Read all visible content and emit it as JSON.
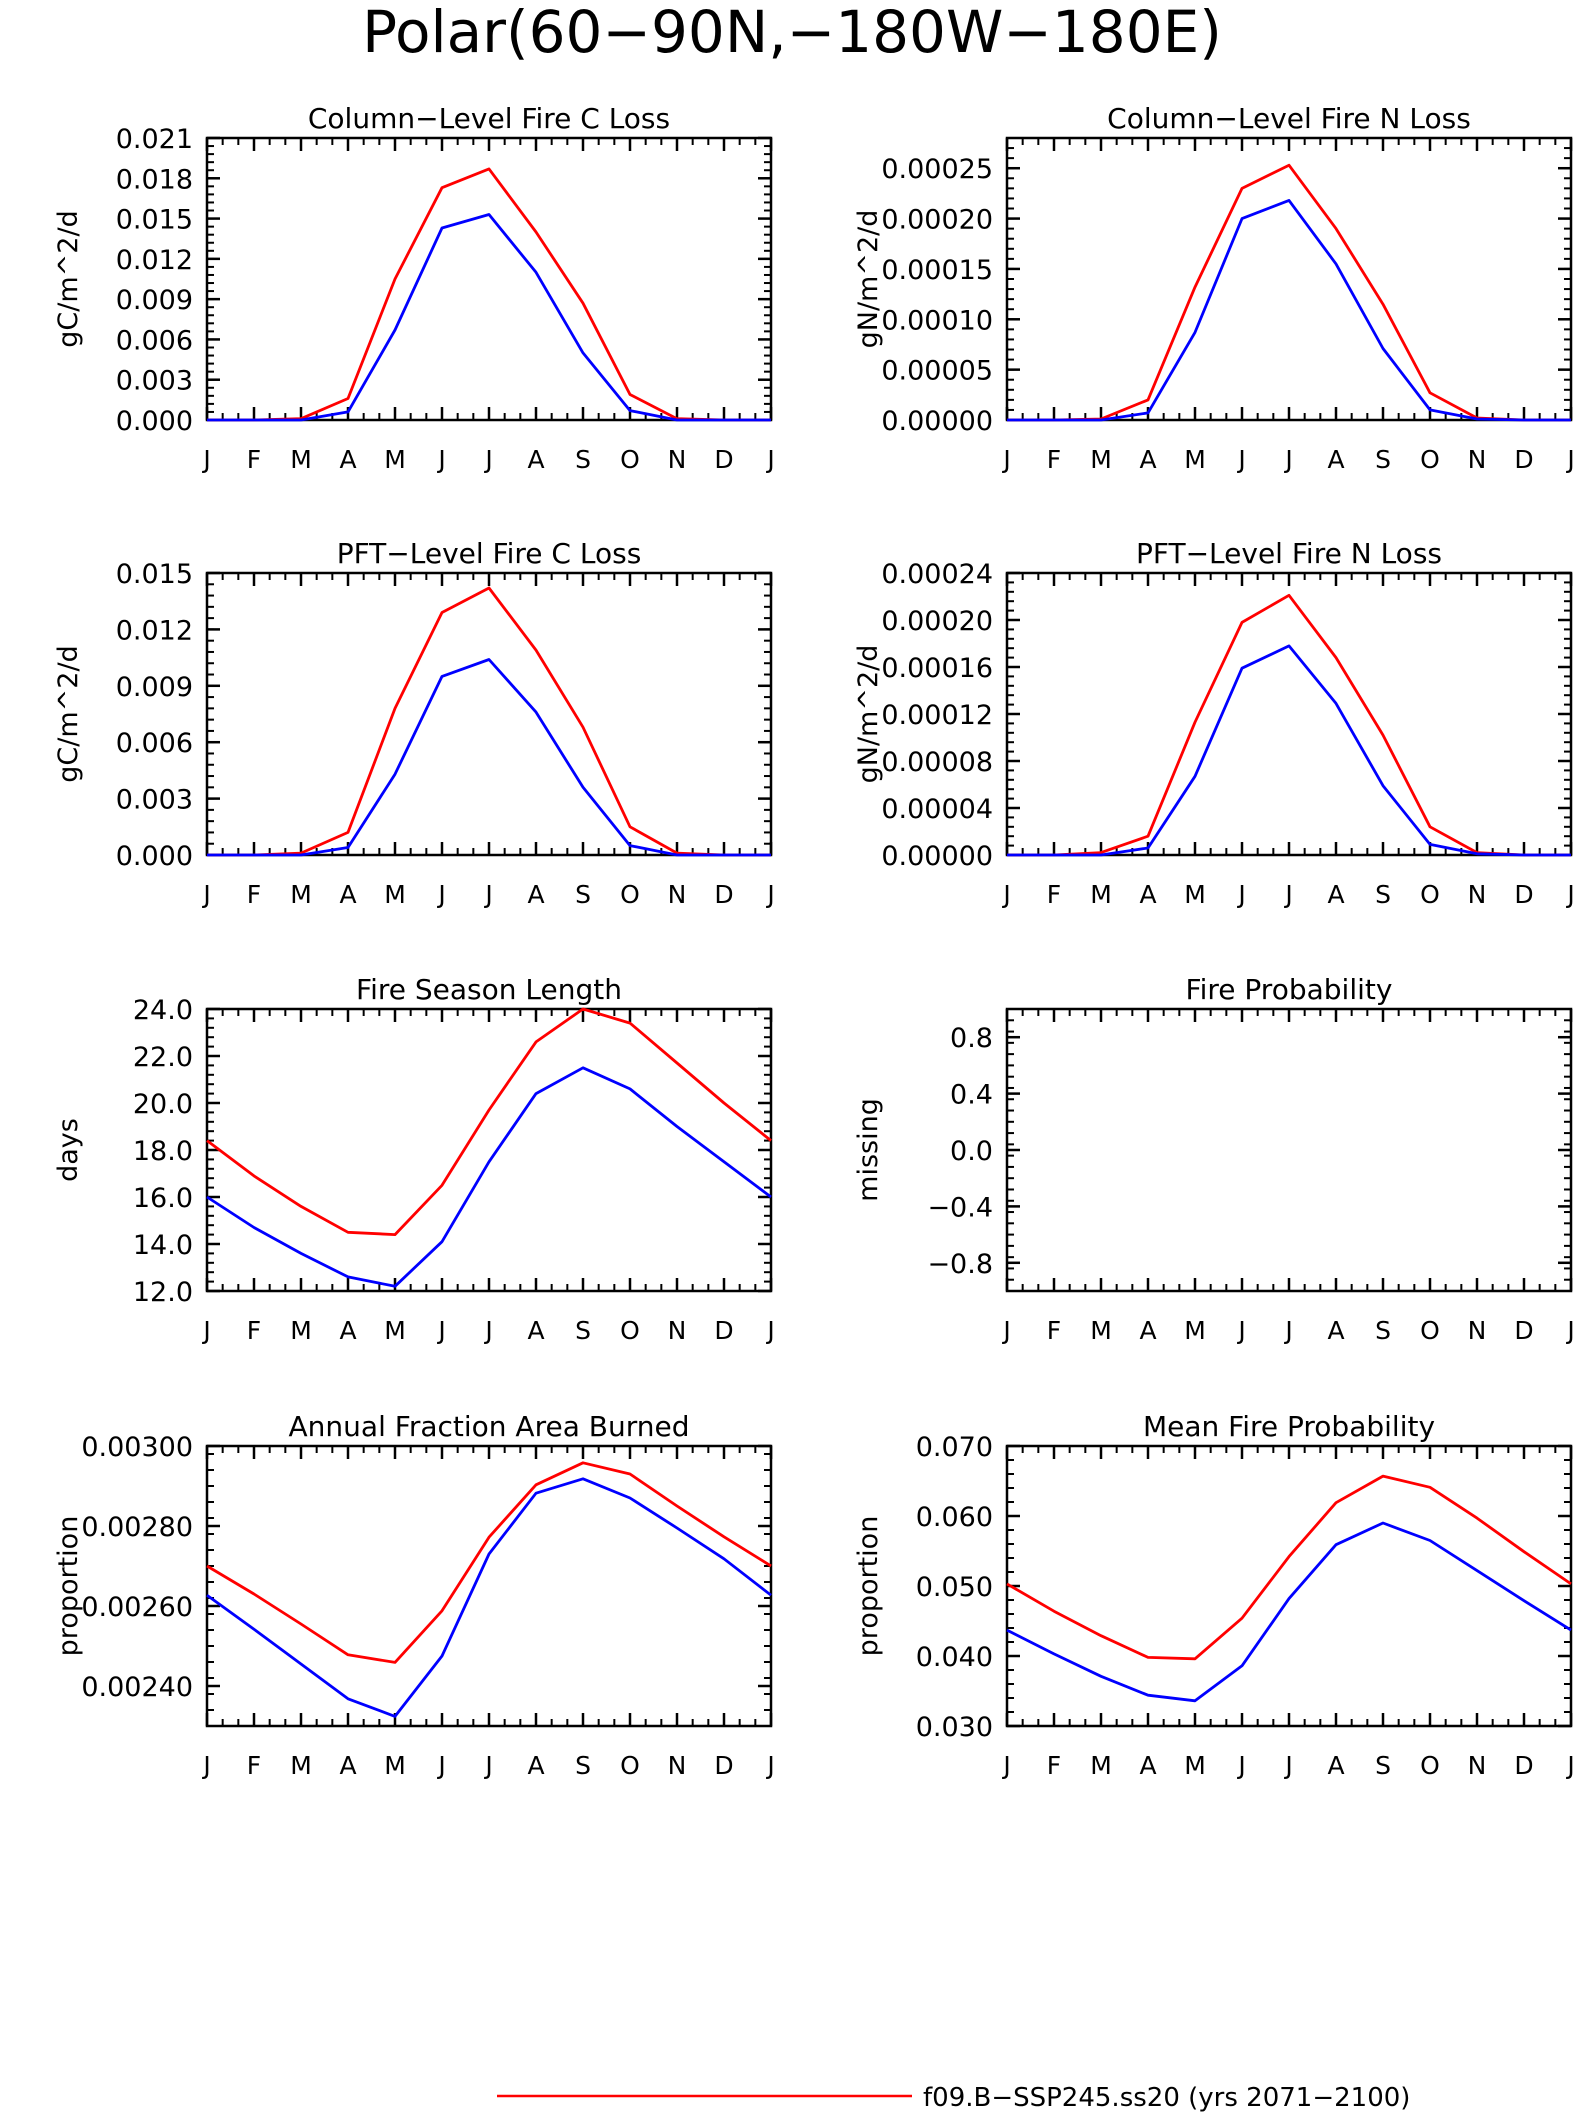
{
  "figure": {
    "title": "Polar(60−90N,−180W−180E)",
    "legend": [
      {
        "label": "f09.B−SSP245.ss20 (yrs 2071−2100)",
        "color": "#ff0000"
      }
    ]
  },
  "colors": {
    "series_red": "#ff0000",
    "series_blue": "#0000ff",
    "axis": "#000000"
  },
  "chart_data": [
    {
      "type": "line",
      "title": "Column−Level Fire C Loss",
      "ylabel": "gC/m^2/d",
      "x": [
        "J",
        "F",
        "M",
        "A",
        "M",
        "J",
        "J",
        "A",
        "S",
        "O",
        "N",
        "D",
        "J"
      ],
      "ylim": [
        0,
        0.021
      ],
      "yticks": [
        0,
        0.003,
        0.006,
        0.009,
        0.012,
        0.015,
        0.018,
        0.021
      ],
      "ytick_labels": [
        "0.000",
        "0.003",
        "0.006",
        "0.009",
        "0.012",
        "0.015",
        "0.018",
        "0.021"
      ],
      "series": [
        {
          "color": "#ff0000",
          "values": [
            0,
            0,
            0.0001,
            0.0016,
            0.0105,
            0.0173,
            0.0187,
            0.014,
            0.0087,
            0.0019,
            0.0001,
            0,
            0
          ]
        },
        {
          "color": "#0000ff",
          "values": [
            0,
            0,
            0,
            0.0006,
            0.0067,
            0.0143,
            0.0153,
            0.011,
            0.005,
            0.0007,
            0,
            0,
            0
          ]
        }
      ]
    },
    {
      "type": "line",
      "title": "Column−Level Fire N Loss",
      "ylabel": "gN/m^2/d",
      "x": [
        "J",
        "F",
        "M",
        "A",
        "M",
        "J",
        "J",
        "A",
        "S",
        "O",
        "N",
        "D",
        "J"
      ],
      "ylim": [
        0,
        0.00028
      ],
      "yticks": [
        0,
        5e-05,
        0.0001,
        0.00015,
        0.0002,
        0.00025
      ],
      "ytick_labels": [
        "0.00000",
        "0.00005",
        "0.00010",
        "0.00015",
        "0.00020",
        "0.00025"
      ],
      "series": [
        {
          "color": "#ff0000",
          "values": [
            0,
            0,
            1e-06,
            2e-05,
            0.000132,
            0.00023,
            0.000253,
            0.00019,
            0.000115,
            2.7e-05,
            2e-06,
            0,
            0
          ]
        },
        {
          "color": "#0000ff",
          "values": [
            0,
            0,
            0,
            7e-06,
            8.7e-05,
            0.0002,
            0.000218,
            0.000155,
            7.1e-05,
            1e-05,
            1e-06,
            0,
            0
          ]
        }
      ]
    },
    {
      "type": "line",
      "title": "PFT−Level Fire C Loss",
      "ylabel": "gC/m^2/d",
      "x": [
        "J",
        "F",
        "M",
        "A",
        "M",
        "J",
        "J",
        "A",
        "S",
        "O",
        "N",
        "D",
        "J"
      ],
      "ylim": [
        0,
        0.015
      ],
      "yticks": [
        0,
        0.003,
        0.006,
        0.009,
        0.012,
        0.015
      ],
      "ytick_labels": [
        "0.000",
        "0.003",
        "0.006",
        "0.009",
        "0.012",
        "0.015"
      ],
      "series": [
        {
          "color": "#ff0000",
          "values": [
            0,
            0,
            0.0001,
            0.0012,
            0.0078,
            0.0129,
            0.0142,
            0.0109,
            0.0068,
            0.0015,
            0.0001,
            0,
            0
          ]
        },
        {
          "color": "#0000ff",
          "values": [
            0,
            0,
            0,
            0.0004,
            0.0043,
            0.0095,
            0.0104,
            0.0076,
            0.0036,
            0.0005,
            0,
            0,
            0
          ]
        }
      ]
    },
    {
      "type": "line",
      "title": "PFT−Level Fire N Loss",
      "ylabel": "gN/m^2/d",
      "x": [
        "J",
        "F",
        "M",
        "A",
        "M",
        "J",
        "J",
        "A",
        "S",
        "O",
        "N",
        "D",
        "J"
      ],
      "ylim": [
        0,
        0.00024
      ],
      "yticks": [
        0,
        4e-05,
        8e-05,
        0.00012,
        0.00016,
        0.0002,
        0.00024
      ],
      "ytick_labels": [
        "0.00000",
        "0.00004",
        "0.00008",
        "0.00012",
        "0.00016",
        "0.00020",
        "0.00024"
      ],
      "series": [
        {
          "color": "#ff0000",
          "values": [
            0,
            0,
            2e-06,
            1.6e-05,
            0.000113,
            0.000198,
            0.000221,
            0.000168,
            0.000102,
            2.4e-05,
            2e-06,
            0,
            0
          ]
        },
        {
          "color": "#0000ff",
          "values": [
            0,
            0,
            0,
            6e-06,
            6.7e-05,
            0.000159,
            0.000178,
            0.000129,
            5.9e-05,
            9e-06,
            1e-06,
            0,
            0
          ]
        }
      ]
    },
    {
      "type": "line",
      "title": "Fire Season Length",
      "ylabel": "days",
      "x": [
        "J",
        "F",
        "M",
        "A",
        "M",
        "J",
        "J",
        "A",
        "S",
        "O",
        "N",
        "D",
        "J"
      ],
      "ylim": [
        12,
        24
      ],
      "yticks": [
        12,
        14,
        16,
        18,
        20,
        22,
        24
      ],
      "ytick_labels": [
        "12.0",
        "14.0",
        "16.0",
        "18.0",
        "20.0",
        "22.0",
        "24.0"
      ],
      "series": [
        {
          "color": "#ff0000",
          "values": [
            18.4,
            16.9,
            15.6,
            14.5,
            14.4,
            16.5,
            19.7,
            22.6,
            24.0,
            23.4,
            21.7,
            20.0,
            18.4
          ]
        },
        {
          "color": "#0000ff",
          "values": [
            16.0,
            14.7,
            13.6,
            12.6,
            12.2,
            14.1,
            17.5,
            20.4,
            21.5,
            20.6,
            19.0,
            17.5,
            16.0
          ]
        }
      ]
    },
    {
      "type": "line",
      "title": "Fire Probability",
      "ylabel": "missing",
      "x": [
        "J",
        "F",
        "M",
        "A",
        "M",
        "J",
        "J",
        "A",
        "S",
        "O",
        "N",
        "D",
        "J"
      ],
      "ylim": [
        -1,
        1
      ],
      "yticks": [
        -0.8,
        -0.4,
        0,
        0.4,
        0.8
      ],
      "ytick_labels": [
        "−0.8",
        "−0.4",
        "0.0",
        "0.4",
        "0.8"
      ],
      "series": []
    },
    {
      "type": "line",
      "title": "Annual Fraction Area Burned",
      "ylabel": "proportion",
      "x": [
        "J",
        "F",
        "M",
        "A",
        "M",
        "J",
        "J",
        "A",
        "S",
        "O",
        "N",
        "D",
        "J"
      ],
      "ylim": [
        0.0023,
        0.003
      ],
      "yticks": [
        0.0024,
        0.0026,
        0.0028,
        0.003
      ],
      "ytick_labels": [
        "0.00240",
        "0.00260",
        "0.00280",
        "0.00300"
      ],
      "series": [
        {
          "color": "#ff0000",
          "values": [
            0.0027,
            0.00263,
            0.002555,
            0.002478,
            0.002459,
            0.002588,
            0.002772,
            0.002903,
            0.002958,
            0.00293,
            0.00285,
            0.002773,
            0.0027
          ]
        },
        {
          "color": "#0000ff",
          "values": [
            0.002627,
            0.002542,
            0.002455,
            0.002368,
            0.002324,
            0.002475,
            0.00273,
            0.002882,
            0.002918,
            0.00287,
            0.002795,
            0.002718,
            0.002627
          ]
        }
      ]
    },
    {
      "type": "line",
      "title": "Mean Fire Probability",
      "ylabel": "proportion",
      "x": [
        "J",
        "F",
        "M",
        "A",
        "M",
        "J",
        "J",
        "A",
        "S",
        "O",
        "N",
        "D",
        "J"
      ],
      "ylim": [
        0.03,
        0.07
      ],
      "yticks": [
        0.03,
        0.04,
        0.05,
        0.06,
        0.07
      ],
      "ytick_labels": [
        "0.030",
        "0.040",
        "0.050",
        "0.060",
        "0.070"
      ],
      "series": [
        {
          "color": "#ff0000",
          "values": [
            0.0503,
            0.0464,
            0.0429,
            0.0398,
            0.0396,
            0.0454,
            0.0542,
            0.0619,
            0.0657,
            0.0641,
            0.0597,
            0.0549,
            0.0503
          ]
        },
        {
          "color": "#0000ff",
          "values": [
            0.0437,
            0.0403,
            0.0371,
            0.0344,
            0.0336,
            0.0386,
            0.0482,
            0.0559,
            0.059,
            0.0565,
            0.0522,
            0.0479,
            0.0437
          ]
        }
      ]
    }
  ]
}
